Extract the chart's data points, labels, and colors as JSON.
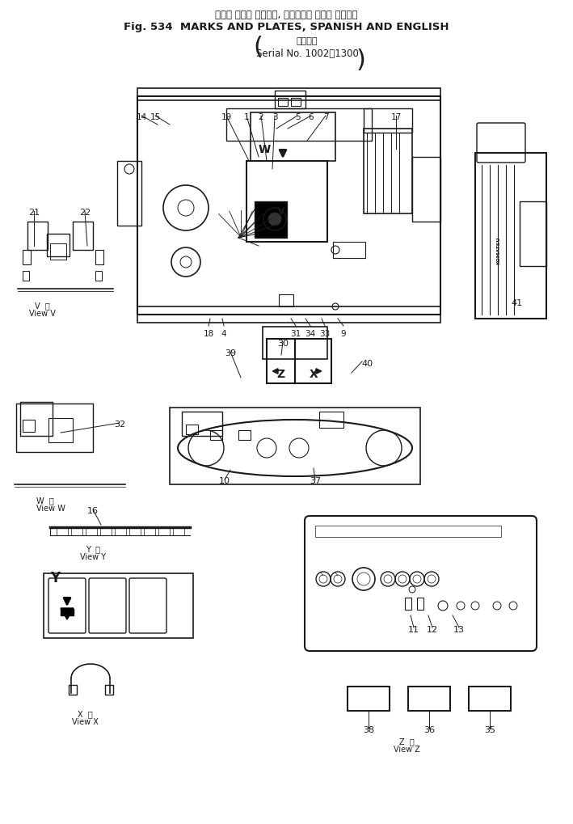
{
  "title_japanese": "マーク および プレート, スペイン語 および 英　　語",
  "title_english": "Fig. 534  MARKS AND PLATES, SPANISH AND ENGLISH",
  "serial_jp": "適用号機",
  "serial_en": "Serial No. 1002～1300",
  "bg_color": "#f0f0f0",
  "line_color": "#1a1a1a",
  "text_color": "#1a1a1a",
  "fig_width": 7.09,
  "fig_height": 10.2,
  "dpi": 100
}
